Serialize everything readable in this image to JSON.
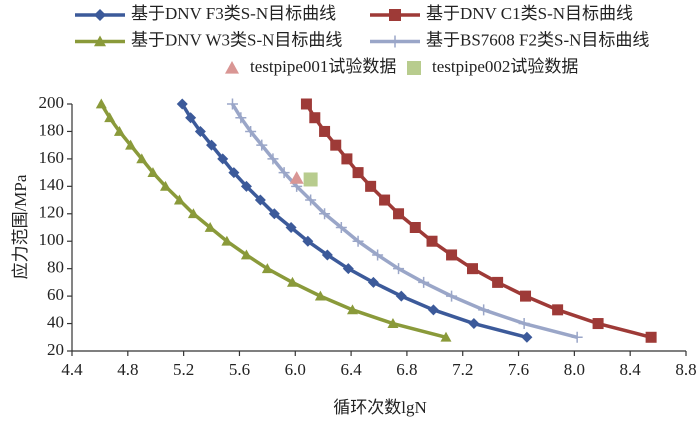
{
  "chart_data": {
    "type": "line",
    "xlabel": "循环次数lgN",
    "ylabel": "应力范围/MPa",
    "xlim": [
      4.4,
      8.8
    ],
    "ylim": [
      20,
      200
    ],
    "xticks": [
      4.4,
      4.8,
      5.2,
      5.6,
      {
        "value": 6,
        "label": "6.0"
      },
      6.4,
      6.8,
      7.2,
      7.6,
      {
        "value": 8,
        "label": "8.0"
      },
      8.4,
      8.8
    ],
    "yticks": [
      20,
      40,
      60,
      80,
      100,
      120,
      140,
      160,
      180,
      200
    ],
    "grid": false,
    "series": [
      {
        "name": "基于DNV F3类S-N目标曲线",
        "color": "#3c5a9a",
        "marker": "diamond",
        "line": true,
        "x": [
          5.19,
          5.25,
          5.32,
          5.4,
          5.48,
          5.56,
          5.65,
          5.75,
          5.85,
          5.97,
          6.09,
          6.23,
          6.38,
          6.56,
          6.76,
          6.99,
          7.28,
          7.66
        ],
        "values": [
          200,
          190,
          180,
          170,
          160,
          150,
          140,
          130,
          120,
          110,
          100,
          90,
          80,
          70,
          60,
          50,
          40,
          30
        ]
      },
      {
        "name": "基于DNV C1类S-N目标曲线",
        "color": "#9e3a37",
        "marker": "square",
        "line": true,
        "x": [
          6.08,
          6.14,
          6.21,
          6.29,
          6.37,
          6.45,
          6.54,
          6.64,
          6.74,
          6.86,
          6.98,
          7.12,
          7.27,
          7.45,
          7.65,
          7.88,
          8.17,
          8.55
        ],
        "values": [
          200,
          190,
          180,
          170,
          160,
          150,
          140,
          130,
          120,
          110,
          100,
          90,
          80,
          70,
          60,
          50,
          40,
          30
        ]
      },
      {
        "name": "基于DNV W3类S-N目标曲线",
        "color": "#8a9a3a",
        "marker": "triangle",
        "line": true,
        "x": [
          4.61,
          4.67,
          4.74,
          4.82,
          4.9,
          4.98,
          5.07,
          5.17,
          5.27,
          5.39,
          5.51,
          5.65,
          5.8,
          5.98,
          6.18,
          6.41,
          6.7,
          7.08
        ],
        "values": [
          200,
          190,
          180,
          170,
          160,
          150,
          140,
          130,
          120,
          110,
          100,
          90,
          80,
          70,
          60,
          50,
          40,
          30
        ]
      },
      {
        "name": "基于BS7608 F2类S-N目标曲线",
        "color": "#9aa6c8",
        "marker": "plus",
        "line": true,
        "x": [
          5.55,
          5.61,
          5.68,
          5.76,
          5.84,
          5.92,
          6.01,
          6.11,
          6.21,
          6.33,
          6.45,
          6.59,
          6.74,
          6.92,
          7.12,
          7.35,
          7.64,
          8.02
        ],
        "values": [
          200,
          190,
          180,
          170,
          160,
          150,
          140,
          130,
          120,
          110,
          100,
          90,
          80,
          70,
          60,
          50,
          40,
          30
        ]
      },
      {
        "name": "testpipe001试验数据",
        "color": "#d99694",
        "marker": "triangle",
        "line": false,
        "x": [
          6.01
        ],
        "values": [
          146
        ]
      },
      {
        "name": "testpipe002试验数据",
        "color": "#b8cc8e",
        "marker": "square",
        "line": false,
        "x": [
          6.11
        ],
        "values": [
          145
        ]
      }
    ]
  }
}
